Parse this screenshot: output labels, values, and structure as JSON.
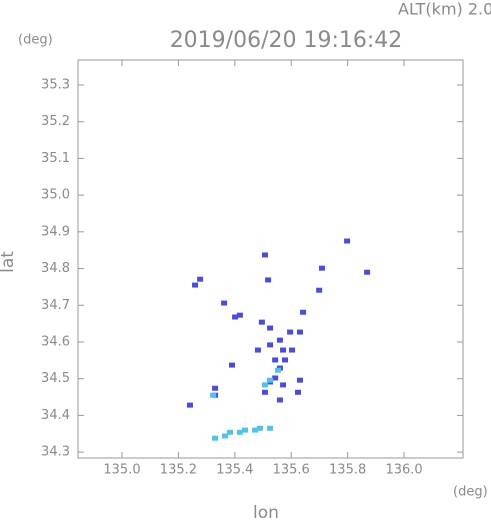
{
  "chart_data": {
    "type": "scatter",
    "title": "2019/06/20 19:16:42",
    "subtitle": "ALT(km) 2.0",
    "y_unit": "(deg)",
    "x_unit": "(deg)",
    "x_label": "lon",
    "y_label": "lat",
    "xlim": [
      134.844,
      136.209
    ],
    "ylim": [
      34.284,
      35.368
    ],
    "xticks": [
      {
        "value": 135.0,
        "label": "135.0"
      },
      135.2,
      135.4,
      135.6,
      135.8,
      {
        "value": 136.0,
        "label": "136.0"
      }
    ],
    "yticks": [
      34.3,
      34.4,
      34.5,
      34.6,
      34.7,
      34.8,
      34.9,
      {
        "value": 35.0,
        "label": "35.0"
      },
      35.1,
      35.2,
      35.3
    ],
    "series": [
      {
        "color": "#4a4ae6",
        "x": [
          135.798,
          135.277,
          135.259,
          135.507,
          135.709,
          135.869,
          135.699,
          135.518,
          135.362,
          135.401,
          135.418,
          135.496,
          135.642,
          135.525,
          135.596,
          135.56,
          135.631,
          135.525,
          135.603,
          135.578,
          135.56,
          135.543,
          135.525,
          135.482,
          135.39,
          135.631,
          135.624,
          135.571,
          135.507,
          135.33,
          135.241,
          135.33,
          135.56,
          135.543,
          135.571
        ],
        "y": [
          34.875,
          34.771,
          34.755,
          34.837,
          34.801,
          34.79,
          34.741,
          34.769,
          34.706,
          34.668,
          34.673,
          34.654,
          34.681,
          34.638,
          34.627,
          34.605,
          34.627,
          34.592,
          34.578,
          34.551,
          34.529,
          34.502,
          34.491,
          34.578,
          34.537,
          34.496,
          34.463,
          34.483,
          34.463,
          34.455,
          34.428,
          34.474,
          34.442,
          34.551,
          34.578
        ]
      },
      {
        "color": "#4cc4ee",
        "x": [
          135.525,
          135.507,
          135.553,
          135.323,
          135.33,
          135.383,
          135.436,
          135.489,
          135.525,
          135.365,
          135.418,
          135.472
        ],
        "y": [
          34.496,
          34.483,
          34.523,
          34.455,
          34.338,
          34.354,
          34.36,
          34.365,
          34.365,
          34.344,
          34.354,
          34.36
        ]
      }
    ]
  }
}
